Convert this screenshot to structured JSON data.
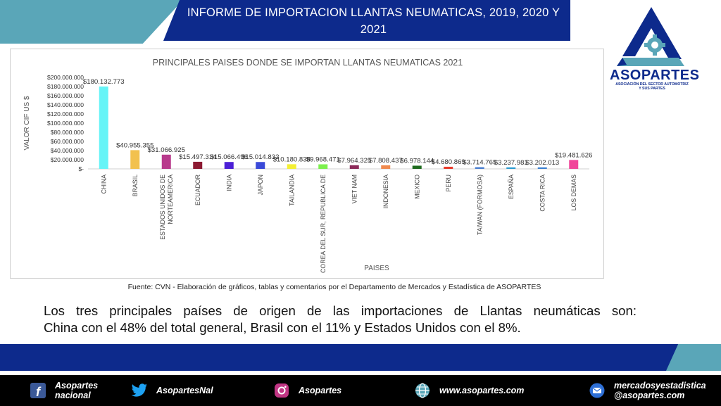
{
  "header": {
    "title_line1": "INFORME DE IMPORTACION LLANTAS NEUMATICAS, 2019, 2020 Y",
    "title_line2": "2021"
  },
  "logo": {
    "name": "ASOPARTES",
    "subtitle_line1": "ASOCIACIÓN DEL SECTOR AUTOMOTRIZ",
    "subtitle_line2": "Y SUS PARTES",
    "icon": "asopartes-logo-icon",
    "colors": {
      "navy": "#0d2a8c",
      "teal": "#5aa6b8"
    }
  },
  "chart_data": {
    "type": "bar",
    "title": "PRINCIPALES PAISES DONDE SE IMPORTAN LLANTAS NEUMATICAS 2021",
    "xlabel": "PAISES",
    "ylabel": "VALOR CIF US $",
    "ylim": [
      0,
      200000000
    ],
    "yticks": [
      "$200.000.000",
      "$180.000.000",
      "$160.000.000",
      "$140.000.000",
      "$120.000.000",
      "$100.000.000",
      "$80.000.000",
      "$60.000.000",
      "$40.000.000",
      "$20.000.000",
      "$-"
    ],
    "categories": [
      "CHINA",
      "BRASIL",
      "ESTADOS UNIDOS DE NORTEAMERICA",
      "ECUADOR",
      "INDIA",
      "JAPON",
      "TAILANDIA",
      "COREA DEL SUR, REPUBLICA DE",
      "VIET NAM",
      "INDONESIA",
      "MEXICO",
      "PERU",
      "TAIWAN (FORMOSA)",
      "ESPAÑA",
      "COSTA RICA",
      "LOS DEMAS"
    ],
    "tick_labels": [
      [
        "CHINA"
      ],
      [
        "BRASIL"
      ],
      [
        "ESTADOS UNIDOS DE",
        "NORTEAMERICA"
      ],
      [
        "ECUADOR"
      ],
      [
        "INDIA"
      ],
      [
        "JAPON"
      ],
      [
        "TAILANDIA"
      ],
      [
        "COREA DEL SUR, REPUBLICA DE"
      ],
      [
        "VIET NAM"
      ],
      [
        "INDONESIA"
      ],
      [
        "MEXICO"
      ],
      [
        "PERU"
      ],
      [
        "TAIWAN (FORMOSA)"
      ],
      [
        "ESPAÑA"
      ],
      [
        "COSTA RICA"
      ],
      [
        "LOS DEMAS"
      ]
    ],
    "values": [
      180132773,
      40955355,
      31066925,
      15497314,
      15066496,
      15014832,
      10180838,
      9968471,
      7964325,
      7808437,
      6978144,
      4680869,
      3714769,
      3237981,
      3202013,
      19481626
    ],
    "data_labels": [
      "$180.132.773",
      "$40.955.355",
      "$31.066.925",
      "$15.497.314",
      "$15.066.496",
      "$15.014.832",
      "$10.180.838",
      "$9.968.471",
      "$7.964.325",
      "$7.808.437",
      "$6.978.144",
      "$4.680.869",
      "$3.714.769",
      "$3.237.981",
      "$3.202.013",
      "$19.481.626"
    ],
    "colors": [
      "#66f4f7",
      "#f2c14e",
      "#b83a8c",
      "#8c1a32",
      "#4b1fd6",
      "#3a49d8",
      "#f4f034",
      "#7df04e",
      "#8c2b5a",
      "#f08a4e",
      "#1f6b1f",
      "#e83a2a",
      "#4a7fd0",
      "#2a9ad0",
      "#3a7fd0",
      "#f0469a"
    ],
    "grid": false,
    "legend": "none"
  },
  "source": "Fuente: CVN - Elaboración de gráficos, tablas y comentarios  por el Departamento de Mercados y Estadística de ASOPARTES",
  "summary": {
    "line1": "Los tres principales países de origen de las importaciones de Llantas neumáticas  son:",
    "line2": "China con el 48% del total general, Brasil con el 11% y Estados Unidos con el 8%."
  },
  "footer": {
    "facebook": {
      "line1": "Asopartes",
      "line2": "nacional",
      "icon": "facebook-icon"
    },
    "twitter": {
      "label": "AsopartesNal",
      "icon": "twitter-icon"
    },
    "instagram": {
      "label": "Asopartes",
      "icon": "instagram-icon"
    },
    "web": {
      "label": "www.asopartes.com",
      "icon": "globe-icon"
    },
    "email": {
      "line1": "mercadosyestadistica",
      "line2": "@asopartes.com",
      "icon": "mail-icon"
    }
  }
}
